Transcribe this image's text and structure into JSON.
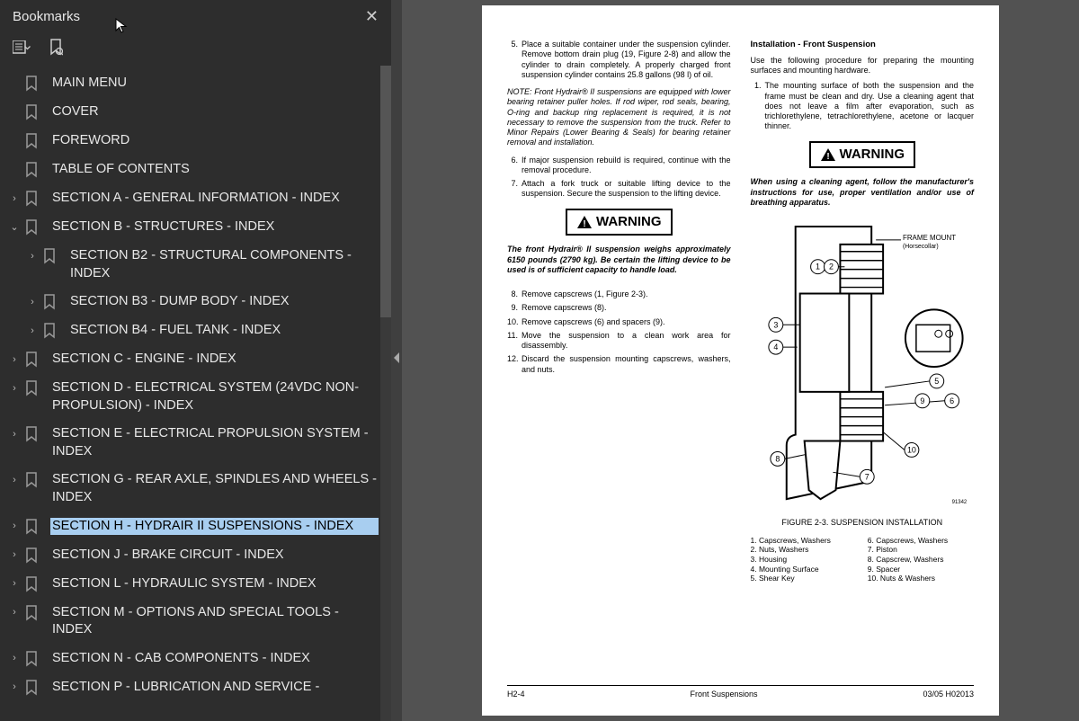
{
  "sidebar": {
    "title": "Bookmarks",
    "items": [
      {
        "label": "MAIN MENU",
        "level": 0,
        "expandable": false
      },
      {
        "label": "COVER",
        "level": 0,
        "expandable": false
      },
      {
        "label": "FOREWORD",
        "level": 0,
        "expandable": false
      },
      {
        "label": "TABLE OF CONTENTS",
        "level": 0,
        "expandable": false
      },
      {
        "label": "SECTION A - GENERAL INFORMATION - INDEX",
        "level": 0,
        "expandable": true,
        "expanded": false
      },
      {
        "label": "SECTION B - STRUCTURES - INDEX",
        "level": 0,
        "expandable": true,
        "expanded": true
      },
      {
        "label": "SECTION B2 - STRUCTURAL COMPONENTS - INDEX",
        "level": 1,
        "expandable": true,
        "expanded": false
      },
      {
        "label": "SECTION B3 - DUMP BODY - INDEX",
        "level": 1,
        "expandable": true,
        "expanded": false
      },
      {
        "label": "SECTION B4 - FUEL TANK - INDEX",
        "level": 1,
        "expandable": true,
        "expanded": false
      },
      {
        "label": "SECTION C - ENGINE - INDEX",
        "level": 0,
        "expandable": true,
        "expanded": false
      },
      {
        "label": "SECTION D - ELECTRICAL SYSTEM (24VDC NON-PROPULSION) - INDEX",
        "level": 0,
        "expandable": true,
        "expanded": false
      },
      {
        "label": "SECTION E - ELECTRICAL PROPULSION SYSTEM - INDEX",
        "level": 0,
        "expandable": true,
        "expanded": false
      },
      {
        "label": "SECTION G - REAR AXLE, SPINDLES AND WHEELS - INDEX",
        "level": 0,
        "expandable": true,
        "expanded": false
      },
      {
        "label": "SECTION H - HYDRAIR II SUSPENSIONS - INDEX",
        "level": 0,
        "expandable": true,
        "expanded": false,
        "selected": true
      },
      {
        "label": "SECTION J - BRAKE CIRCUIT - INDEX",
        "level": 0,
        "expandable": true,
        "expanded": false
      },
      {
        "label": "SECTION L - HYDRAULIC SYSTEM - INDEX",
        "level": 0,
        "expandable": true,
        "expanded": false
      },
      {
        "label": "SECTION M - OPTIONS AND SPECIAL TOOLS - INDEX",
        "level": 0,
        "expandable": true,
        "expanded": false
      },
      {
        "label": "SECTION N - CAB COMPONENTS - INDEX",
        "level": 0,
        "expandable": true,
        "expanded": false
      },
      {
        "label": "SECTION P - LUBRICATION AND SERVICE -",
        "level": 0,
        "expandable": true,
        "expanded": false
      }
    ]
  },
  "page": {
    "left": {
      "item5": "Place a suitable container under the suspension cylinder. Remove bottom drain plug (19, Figure 2-8) and allow the cylinder to drain completely. A properly charged front suspension cylinder contains 25.8 gallons (98 l) of oil.",
      "note": "NOTE: Front Hydrair® II suspensions are equipped with lower bearing retainer puller holes. If rod wiper, rod seals, bearing, O-ring and backup ring replacement is required, it is not necessary to remove the suspension from the truck. Refer to Minor Repairs (Lower Bearing & Seals) for bearing retainer removal and installation.",
      "item6": "If major suspension rebuild is required, continue with the removal procedure.",
      "item7": "Attach a fork truck or suitable lifting device to the suspension. Secure the suspension to the lifting device.",
      "warn_label": "WARNING",
      "warn1": "The front Hydrair® II suspension weighs approximately 6150 pounds (2790 kg). Be certain the lifting device to be used is of sufficient capacity to handle load.",
      "item8": "Remove capscrews (1, Figure 2-3).",
      "item9": "Remove capscrews (8).",
      "item10": "Remove capscrews (6) and spacers (9).",
      "item11": "Move the suspension to a clean work area for disassembly.",
      "item12": "Discard the suspension mounting capscrews, washers, and nuts."
    },
    "right": {
      "heading": "Installation - Front Suspension",
      "intro": "Use the following procedure for preparing the mounting surfaces and mounting hardware.",
      "item1": "The mounting surface of both the suspension and the frame must be clean and dry. Use a cleaning agent that does not leave a film after evaporation, such as trichlorethylene, tetrachlorethylene, acetone or lacquer thinner.",
      "warn_label": "WARNING",
      "warn2": "When using a cleaning agent, follow the manufacturer's instructions for use, proper ventilation and/or use of breathing apparatus.",
      "frame_label": "FRAME MOUNT",
      "frame_sub": "(Horsecollar)",
      "fig_id": "91342",
      "fig_caption": "FIGURE 2-3. SUSPENSION INSTALLATION",
      "legend_left": [
        "1. Capscrews, Washers",
        "2. Nuts, Washers",
        "3. Housing",
        "4. Mounting Surface",
        "5. Shear Key"
      ],
      "legend_right": [
        "6. Capscrews, Washers",
        "7. Piston",
        "8. Capscrew, Washers",
        "9. Spacer",
        "10. Nuts & Washers"
      ]
    },
    "footer": {
      "left": "H2-4",
      "center": "Front Suspensions",
      "right": "03/05  H02013"
    }
  },
  "colors": {
    "sidebar_bg": "#2d2d2d",
    "sidebar_text": "#e8e8e8",
    "selected_bg": "#a8cef0",
    "page_bg": "#ffffff",
    "workspace_bg": "#525252"
  }
}
